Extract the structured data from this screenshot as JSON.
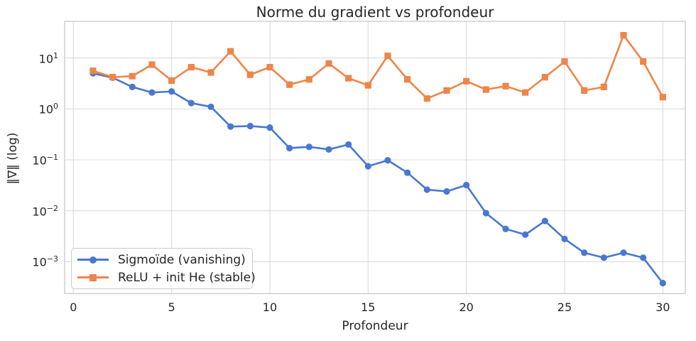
{
  "chart_data": {
    "type": "line",
    "title": "Norme du gradient vs profondeur",
    "xlabel": "Profondeur",
    "ylabel": "‖∇‖ (log)",
    "yscale": "log",
    "grid": true,
    "legend_position": "lower left",
    "x": [
      1,
      2,
      3,
      4,
      5,
      6,
      7,
      8,
      9,
      10,
      11,
      12,
      13,
      14,
      15,
      16,
      17,
      18,
      19,
      20,
      21,
      22,
      23,
      24,
      25,
      26,
      27,
      28,
      29,
      30
    ],
    "x_ticks": [
      0,
      5,
      10,
      15,
      20,
      25,
      30
    ],
    "y_tick_exponents": [
      1,
      0,
      -1,
      -2,
      -3
    ],
    "xlim": [
      -0.45,
      31.45
    ],
    "ylim": [
      0.00023,
      52
    ],
    "series": [
      {
        "name": "Sigmoïde (vanishing)",
        "color": "#4878d0",
        "marker": "circle",
        "values": [
          5.0,
          4.1,
          2.7,
          2.1,
          2.2,
          1.3,
          1.1,
          0.45,
          0.46,
          0.43,
          0.17,
          0.18,
          0.16,
          0.2,
          0.075,
          0.098,
          0.056,
          0.026,
          0.024,
          0.032,
          0.009,
          0.0044,
          0.0034,
          0.0063,
          0.0028,
          0.0015,
          0.0012,
          0.0015,
          0.0012,
          0.00038
        ]
      },
      {
        "name": "ReLU + init He (stable)",
        "color": "#ee854a",
        "marker": "square",
        "values": [
          5.6,
          4.2,
          4.4,
          7.4,
          3.6,
          6.6,
          5.2,
          13.5,
          4.7,
          6.6,
          3.0,
          3.8,
          7.8,
          4.0,
          2.9,
          11.0,
          3.8,
          1.6,
          2.3,
          3.5,
          2.4,
          2.8,
          2.1,
          4.2,
          8.5,
          2.3,
          2.7,
          28.0,
          8.5,
          1.7
        ]
      }
    ],
    "colors": {
      "grid": "#dcdcdc",
      "spine": "#c9c9c9",
      "text": "#262626",
      "background": "#ffffff"
    }
  }
}
